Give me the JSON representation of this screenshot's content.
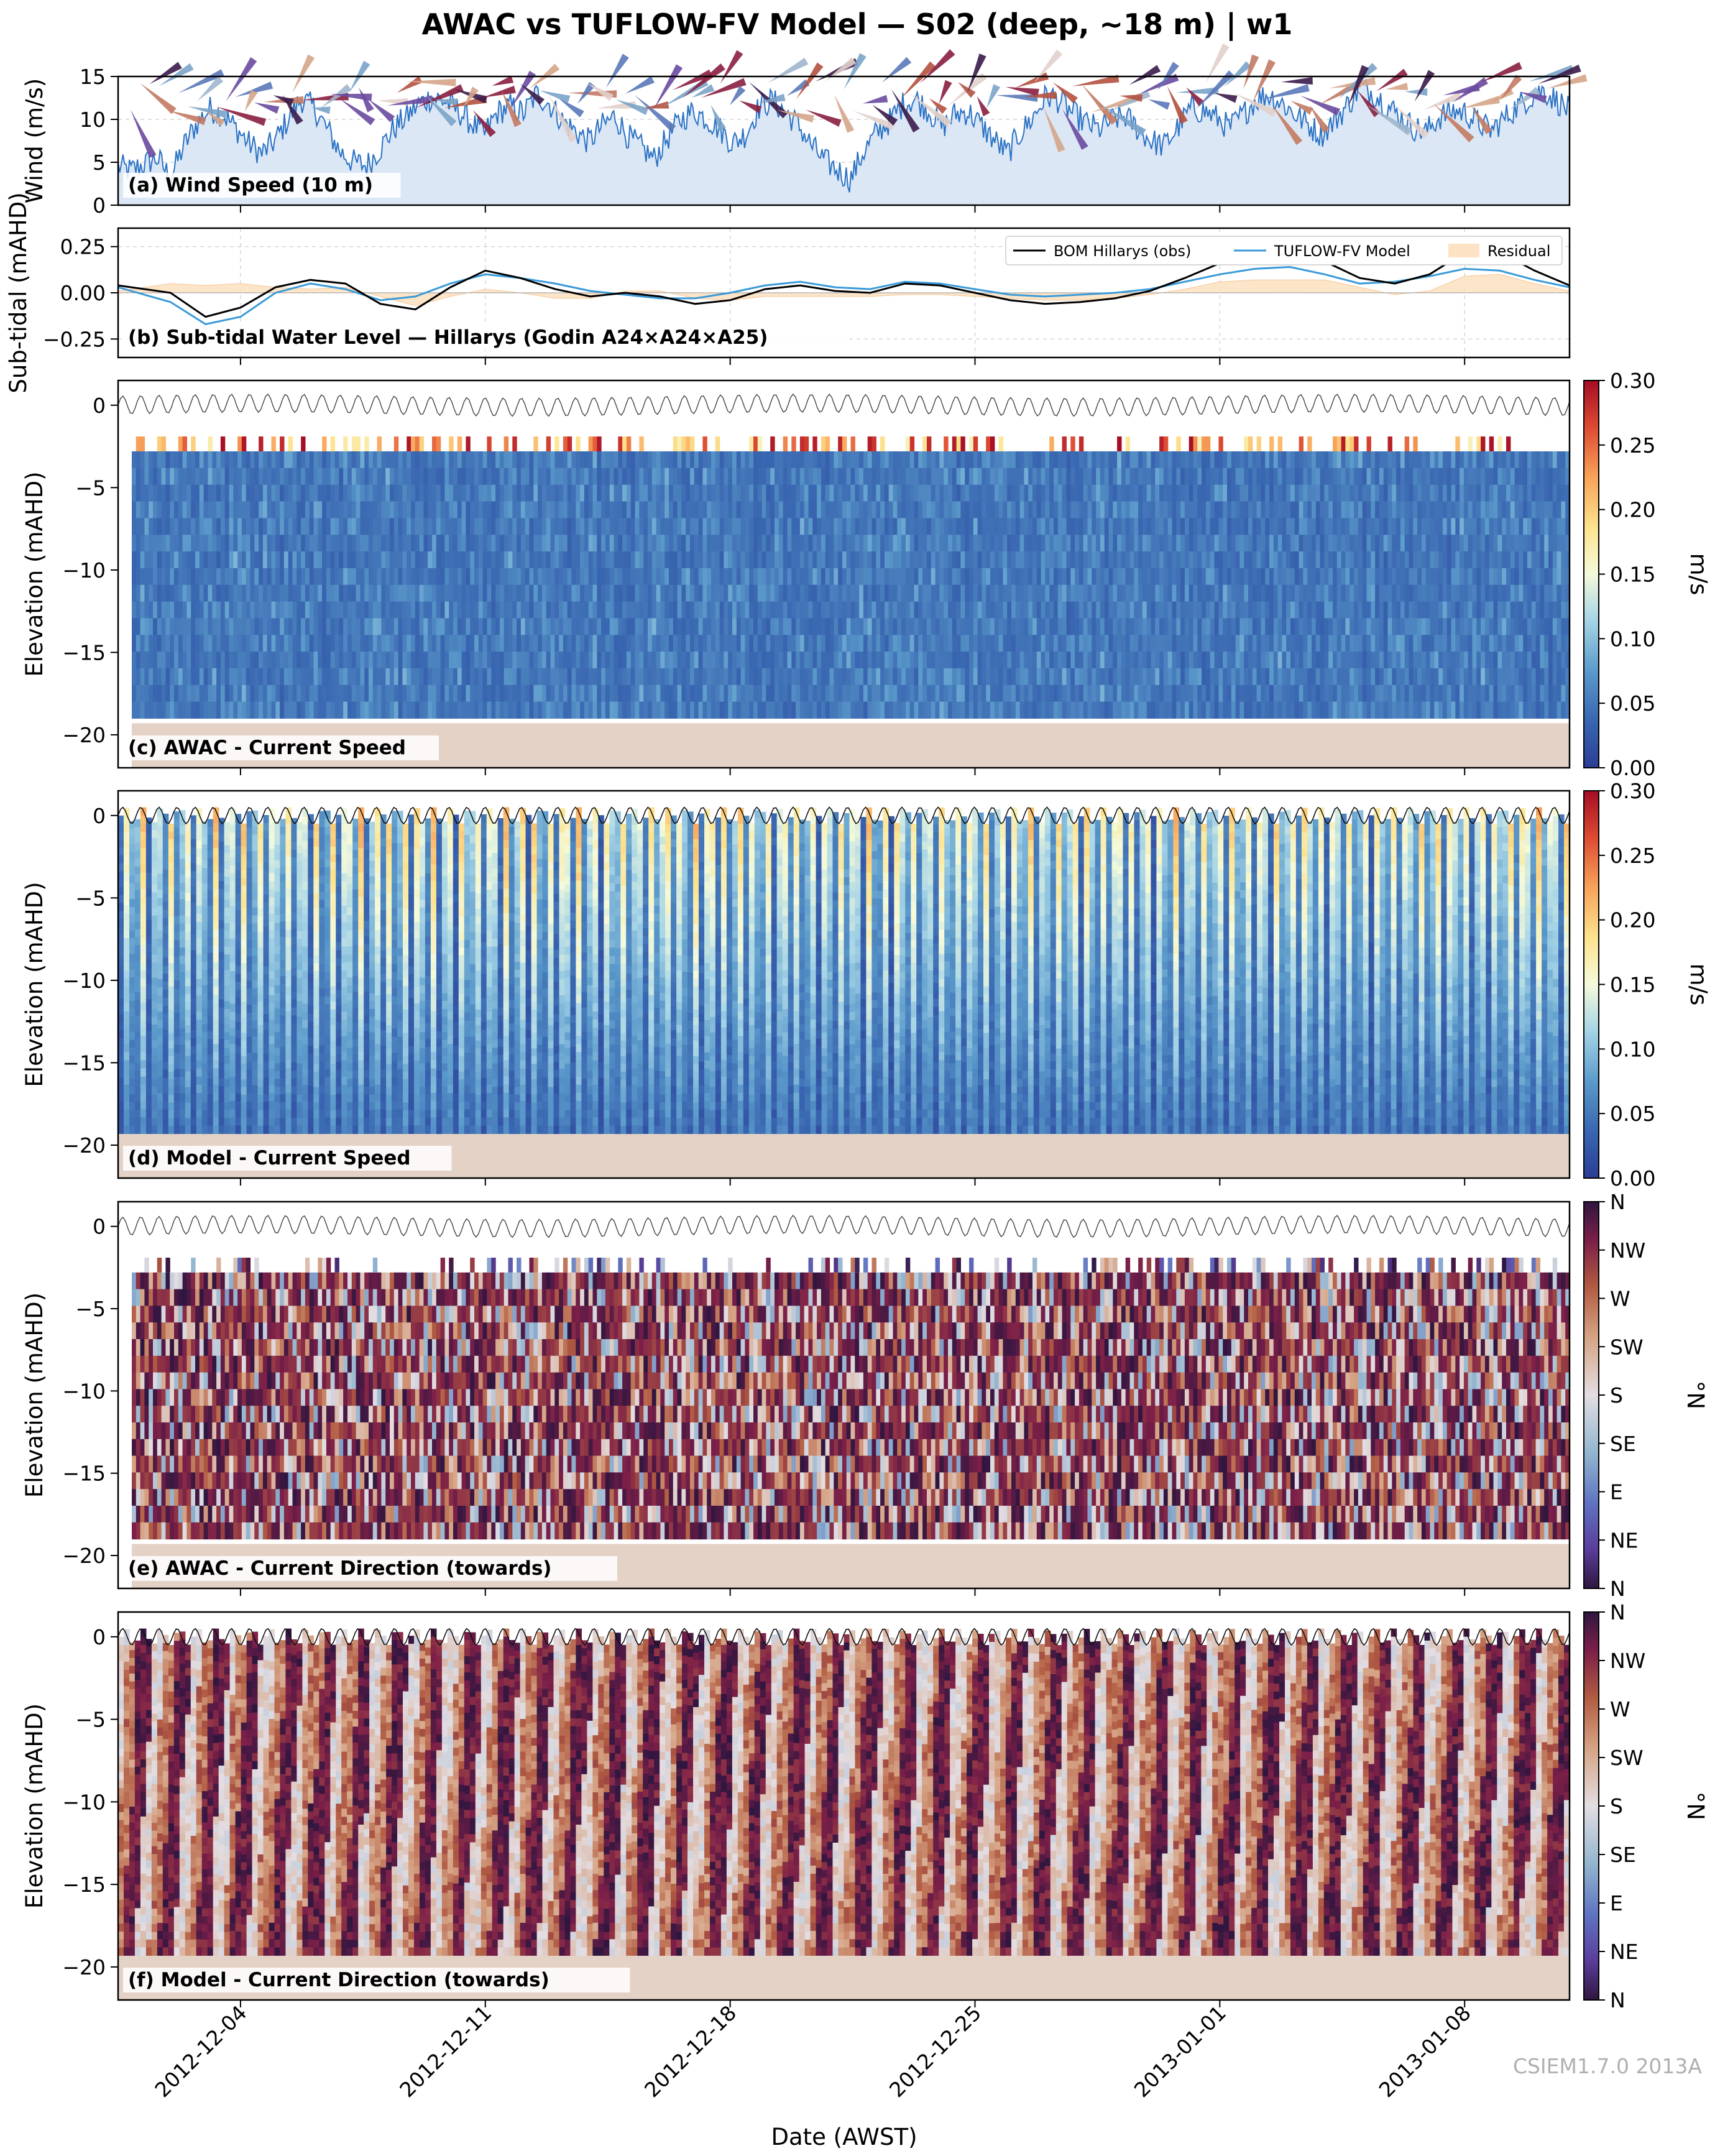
{
  "figure": {
    "title": "AWAC vs TUFLOW-FV Model — S02 (deep, ~18 m) | w1",
    "xlabel": "Date (AWST)",
    "watermark": "CSIEM1.7.0 2013A",
    "x_range": [
      "2012-11-30 12:00",
      "2013-01-11 00:00"
    ],
    "x_ticks": [
      "2012-12-04",
      "2012-12-11",
      "2012-12-18",
      "2012-12-25",
      "2013-01-01",
      "2013-01-08"
    ],
    "colors": {
      "wind_line": "#2a72c4",
      "wind_fill": "#dce7f6",
      "obs_line": "#000000",
      "model_line": "#3a9ad9",
      "residual_fill": "#fde2c3",
      "seabed": "#e3d2c5"
    }
  },
  "chart_data": [
    {
      "id": "a",
      "type": "area",
      "panel_label": "(a) Wind Speed (10 m)",
      "ylabel": "Wind (m/s)",
      "ylim": [
        0,
        15
      ],
      "yticks": [
        0,
        5,
        10,
        15
      ],
      "series": [
        {
          "note_visible": "",
          "values_hourly_approx": [
            4.5,
            4.0,
            4.8,
            5.5,
            3.2,
            6.8,
            9.5,
            11.2,
            10.6,
            9.0,
            7.2,
            6.0,
            7.5,
            10.0,
            12.4,
            11.3,
            8.8,
            6.2,
            5.0,
            4.6,
            6.5,
            8.8,
            10.2,
            11.8,
            12.6,
            12.1,
            11.0,
            9.6,
            8.2,
            10.8,
            11.5,
            10.7,
            12.9,
            11.8,
            9.8,
            8.6,
            7.4,
            9.2,
            10.4,
            8.0,
            6.7,
            5.4,
            7.8,
            9.9,
            11.0,
            10.1,
            8.9,
            7.2,
            8.3,
            11.4,
            12.2,
            10.9,
            9.4,
            7.0,
            5.2,
            4.1,
            3.0,
            6.2,
            8.4,
            9.8,
            11.7,
            12.4,
            11.0,
            9.1,
            10.6,
            10.9,
            9.3,
            7.6,
            6.0,
            8.4,
            10.3,
            12.8,
            12.2,
            10.7,
            9.6,
            8.8,
            9.9,
            10.4,
            8.9,
            7.5,
            6.9,
            9.0,
            11.2,
            11.0,
            10.2,
            9.0,
            10.5,
            12.3,
            12.9,
            11.9,
            10.6,
            9.4,
            8.2,
            9.8,
            11.6,
            13.8,
            13.1,
            11.7,
            10.4,
            9.1,
            8.5,
            10.2,
            11.0,
            10.8,
            9.6,
            8.7,
            10.1,
            11.5,
            12.6,
            13.4,
            12.2,
            11.0
          ]
        }
      ]
    },
    {
      "id": "b",
      "type": "line",
      "panel_label": "(b) Sub-tidal Water Level — Hillarys (Godin A24×A24×A25)",
      "ylabel": "Sub-tidal (mAHD)",
      "ylim": [
        -0.35,
        0.35
      ],
      "yticks": [
        -0.25,
        0.0,
        0.25
      ],
      "ytick_labels": [
        "−0.25",
        "0.00",
        "0.25"
      ],
      "legend": [
        "BOM Hillarys (obs)",
        "TUFLOW-FV Model",
        "Residual"
      ],
      "series": [
        {
          "name": "BOM Hillarys (obs)",
          "x_days": [
            0,
            1.5,
            2.5,
            3.5,
            4.5,
            5.5,
            6.5,
            7.5,
            8.5,
            9.5,
            10.5,
            11.5,
            12.5,
            13.5,
            14.5,
            15.5,
            16.5,
            17.5,
            18.5,
            19.5,
            20.5,
            21.5,
            22.5,
            23.5,
            24.5,
            25.5,
            26.5,
            27.5,
            28.5,
            29.5,
            30.5,
            31.5,
            32.5,
            33.5,
            34.5,
            35.5,
            36.5,
            37.5,
            38.5,
            39.5,
            40.5,
            41.5
          ],
          "values": [
            0.04,
            0.0,
            -0.13,
            -0.08,
            0.03,
            0.07,
            0.05,
            -0.06,
            -0.09,
            0.03,
            0.12,
            0.08,
            0.02,
            -0.02,
            0.0,
            -0.02,
            -0.06,
            -0.04,
            0.02,
            0.04,
            0.01,
            0.0,
            0.05,
            0.04,
            0.0,
            -0.04,
            -0.06,
            -0.05,
            -0.03,
            0.01,
            0.08,
            0.16,
            0.2,
            0.21,
            0.17,
            0.08,
            0.05,
            0.1,
            0.22,
            0.22,
            0.12,
            0.04
          ]
        },
        {
          "name": "TUFLOW-FV Model",
          "x_days": [
            0,
            1.5,
            2.5,
            3.5,
            4.5,
            5.5,
            6.5,
            7.5,
            8.5,
            9.5,
            10.5,
            11.5,
            12.5,
            13.5,
            14.5,
            15.5,
            16.5,
            17.5,
            18.5,
            19.5,
            20.5,
            21.5,
            22.5,
            23.5,
            24.5,
            25.5,
            26.5,
            27.5,
            28.5,
            29.5,
            30.5,
            31.5,
            32.5,
            33.5,
            34.5,
            35.5,
            36.5,
            37.5,
            38.5,
            39.5,
            40.5,
            41.5
          ],
          "values": [
            0.03,
            -0.05,
            -0.17,
            -0.13,
            0.0,
            0.05,
            0.02,
            -0.04,
            -0.02,
            0.05,
            0.1,
            0.08,
            0.05,
            0.01,
            -0.01,
            -0.03,
            -0.03,
            0.0,
            0.04,
            0.06,
            0.03,
            0.02,
            0.06,
            0.05,
            0.02,
            -0.01,
            -0.02,
            -0.01,
            0.0,
            0.02,
            0.06,
            0.1,
            0.13,
            0.14,
            0.1,
            0.05,
            0.06,
            0.09,
            0.13,
            0.12,
            0.07,
            0.03
          ]
        }
      ]
    },
    {
      "id": "c",
      "type": "heatmap",
      "panel_label": "(c) AWAC - Current Speed",
      "ylabel": "Elevation (mAHD)",
      "ylim": [
        -22,
        1.5
      ],
      "yticks": [
        -20,
        -15,
        -10,
        -5,
        0
      ],
      "ytick_labels": [
        "−20",
        "−15",
        "−10",
        "−5",
        "0"
      ],
      "colorbar": {
        "label": "m/s",
        "range": [
          0,
          0.3
        ],
        "ticks": [
          "0.00",
          "0.05",
          "0.10",
          "0.15",
          "0.20",
          "0.25",
          "0.30"
        ]
      },
      "data_depth_range": [
        -19.0,
        -2.8
      ],
      "seabed": -19.3
    },
    {
      "id": "d",
      "type": "heatmap",
      "panel_label": "(d) Model - Current Speed",
      "ylabel": "Elevation (mAHD)",
      "ylim": [
        -22,
        1.5
      ],
      "yticks": [
        -20,
        -15,
        -10,
        -5,
        0
      ],
      "ytick_labels": [
        "−20",
        "−15",
        "−10",
        "−5",
        "0"
      ],
      "colorbar": {
        "label": "m/s",
        "range": [
          0,
          0.3
        ],
        "ticks": [
          "0.00",
          "0.05",
          "0.10",
          "0.15",
          "0.20",
          "0.25",
          "0.30"
        ]
      },
      "data_depth_range": [
        -19.3,
        0.0
      ],
      "seabed": -19.3
    },
    {
      "id": "e",
      "type": "heatmap",
      "panel_label": "(e) AWAC - Current Direction (towards)",
      "ylabel": "Elevation (mAHD)",
      "ylim": [
        -22,
        1.5
      ],
      "yticks": [
        -20,
        -15,
        -10,
        -5,
        0
      ],
      "ytick_labels": [
        "−20",
        "−15",
        "−10",
        "−5",
        "0"
      ],
      "colorbar": {
        "label": "°N",
        "range": [
          0,
          360
        ],
        "ticks": [
          "N",
          "NE",
          "E",
          "SE",
          "S",
          "SW",
          "W",
          "NW",
          "N"
        ]
      },
      "data_depth_range": [
        -19.0,
        -2.8
      ],
      "seabed": -19.3
    },
    {
      "id": "f",
      "type": "heatmap",
      "panel_label": "(f) Model - Current Direction (towards)",
      "ylabel": "Elevation (mAHD)",
      "ylim": [
        -22,
        1.5
      ],
      "yticks": [
        -20,
        -15,
        -10,
        -5,
        0
      ],
      "ytick_labels": [
        "−20",
        "−15",
        "−10",
        "−5",
        "0"
      ],
      "colorbar": {
        "label": "°N",
        "range": [
          0,
          360
        ],
        "ticks": [
          "N",
          "NE",
          "E",
          "SE",
          "S",
          "SW",
          "W",
          "NW",
          "N"
        ]
      },
      "data_depth_range": [
        -19.3,
        0.0
      ],
      "seabed": -19.3
    }
  ]
}
